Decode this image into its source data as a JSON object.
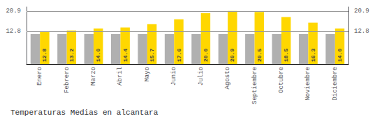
{
  "chart_data": {
    "type": "bar",
    "title": "Temperaturas Medias en alcantara",
    "categories": [
      "Enero",
      "Febrero",
      "Marzo",
      "Abril",
      "Mayo",
      "Junio",
      "Julio",
      "Agosto",
      "Septiembre",
      "Octubre",
      "Noviembre",
      "Diciembre"
    ],
    "series": [
      {
        "color": "#B0B0B0",
        "values": [
          11.8,
          11.8,
          11.8,
          11.8,
          11.8,
          11.8,
          11.8,
          11.8,
          11.8,
          11.8,
          11.8,
          11.8
        ]
      },
      {
        "color": "#FFD700",
        "values": [
          12.8,
          13.2,
          14.0,
          14.4,
          15.7,
          17.6,
          20.0,
          20.9,
          20.5,
          18.5,
          16.3,
          14.0
        ],
        "data_labels": true,
        "value_labels": [
          "12.8",
          "13.2",
          "14.0",
          "14.4",
          "15.7",
          "17.6",
          "20.0",
          "20.9",
          "20.5",
          "18.5",
          "16.3",
          "14.0"
        ]
      }
    ],
    "ylim": [
      0,
      22.5
    ],
    "yticks": [
      12.8,
      20.9
    ],
    "grid": true
  }
}
